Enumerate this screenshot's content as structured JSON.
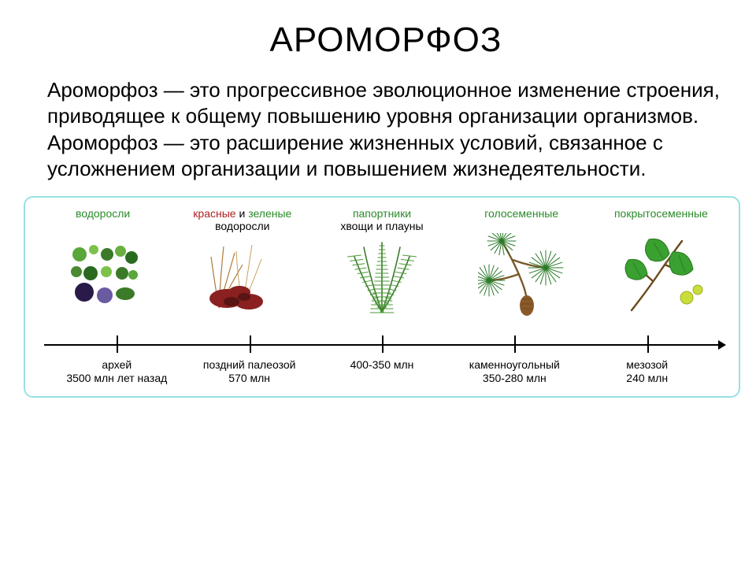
{
  "title": "АРОМОРФОЗ",
  "paragraph": "Ароморфоз — это прогрессивное эволюционное изменение строения, приводящее к общему повышению уровня организации организмов. Ароморфоз — это расширение жизненных условий, связанное с усложнением организации и повышением жизнедеятельности.",
  "timeline_box_border_color": "#97e2e4",
  "groups": [
    {
      "label": "водоросли",
      "label_color": "#2a8a2a",
      "sublabel": "",
      "icon": "algae"
    },
    {
      "label": "красные и зеленые",
      "label_color": "mix",
      "sublabel": "водоросли",
      "icon": "red-green-algae"
    },
    {
      "label": "папортники",
      "label_color": "#2a8a2a",
      "sublabel": "хвощи и плауны",
      "icon": "fern"
    },
    {
      "label": "голосеменные",
      "label_color": "#2a8a2a",
      "sublabel": "",
      "icon": "gymnosperm"
    },
    {
      "label": "покрытосеменные",
      "label_color": "#2a8a2a",
      "sublabel": "",
      "icon": "angiosperm"
    }
  ],
  "ticks_percent": [
    12,
    31,
    50,
    69,
    88
  ],
  "periods": [
    {
      "pos_percent": 12,
      "line1": "архей",
      "line2": "3500 млн лет назад"
    },
    {
      "pos_percent": 31,
      "line1": "поздний палеозой",
      "line2": "570 млн"
    },
    {
      "pos_percent": 50,
      "line1": "",
      "line2": "400-350 млн"
    },
    {
      "pos_percent": 69,
      "line1": "каменноугольный",
      "line2": "350-280 млн"
    },
    {
      "pos_percent": 88,
      "line1": "мезозой",
      "line2": "240 млн"
    }
  ]
}
